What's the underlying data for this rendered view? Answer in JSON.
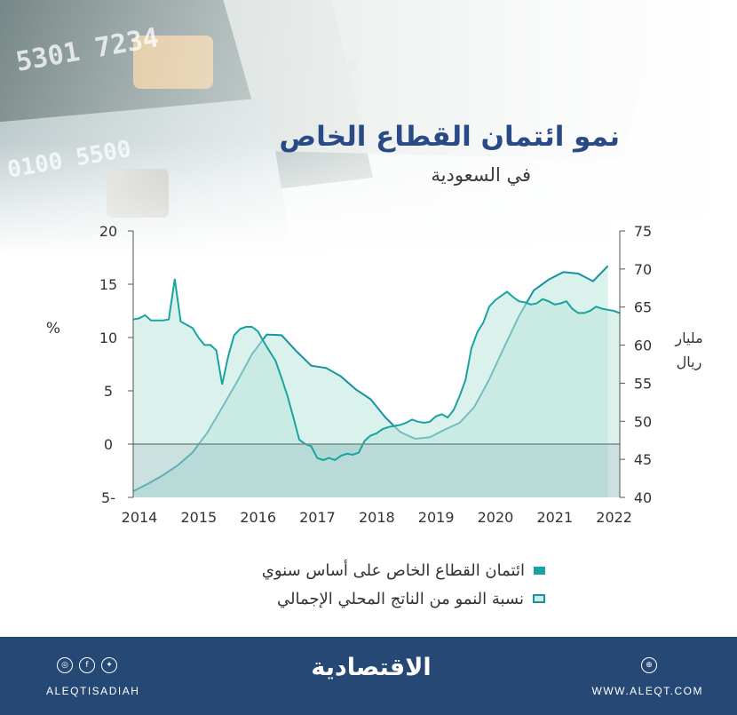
{
  "title": "نمو ائتمان القطاع الخاص",
  "subtitle": "في السعودية",
  "footer": {
    "brand": "الاقتصادية",
    "handle": "ALEQTISADIAH",
    "website": "WWW.ALEQT.COM",
    "social_icons": [
      "instagram-icon",
      "facebook-icon",
      "twitter-icon"
    ],
    "web_icon": "globe-icon"
  },
  "chart_data": {
    "type": "area",
    "left_axis": {
      "label": "%",
      "ticks": [
        "20",
        "15",
        "10",
        "5",
        "0",
        "5-"
      ],
      "ylim": [
        -5,
        20
      ]
    },
    "right_axis": {
      "label_line1": "مليار",
      "label_line2": "ريال",
      "ticks": [
        "75",
        "70",
        "65",
        "60",
        "55",
        "50",
        "45",
        "40"
      ],
      "ylim": [
        40,
        75
      ]
    },
    "x_ticks": [
      "2014",
      "2015",
      "2016",
      "2017",
      "2018",
      "2019",
      "2020",
      "2021",
      "2022"
    ],
    "grid": false,
    "legend_position": "bottom",
    "series": [
      {
        "name": "ائتمان القطاع الخاص على أساس سنوي",
        "axis": "left",
        "color": "#1aa3a0",
        "style": "filled-line",
        "x": [
          2014.0,
          2014.1,
          2014.2,
          2014.3,
          2014.4,
          2014.5,
          2014.6,
          2014.7,
          2014.8,
          2014.9,
          2015.0,
          2015.1,
          2015.2,
          2015.3,
          2015.4,
          2015.5,
          2015.6,
          2015.7,
          2015.8,
          2015.9,
          2016.0,
          2016.1,
          2016.2,
          2016.3,
          2016.4,
          2016.5,
          2016.6,
          2016.7,
          2016.8,
          2016.9,
          2017.0,
          2017.1,
          2017.2,
          2017.3,
          2017.4,
          2017.5,
          2017.6,
          2017.7,
          2017.8,
          2017.9,
          2018.0,
          2018.1,
          2018.2,
          2018.3,
          2018.4,
          2018.5,
          2018.6,
          2018.7,
          2018.8,
          2018.9,
          2019.0,
          2019.1,
          2019.2,
          2019.3,
          2019.4,
          2019.5,
          2019.6,
          2019.7,
          2019.8,
          2019.9,
          2020.0,
          2020.1,
          2020.2,
          2020.3,
          2020.4,
          2020.5,
          2020.6,
          2020.7,
          2020.8,
          2020.9,
          2021.0,
          2021.1,
          2021.2,
          2021.3,
          2021.4,
          2021.5,
          2021.6,
          2021.7,
          2021.8,
          2021.9,
          2022.0,
          2022.1,
          2022.2
        ],
        "values": [
          11.7,
          11.8,
          12.1,
          11.6,
          11.6,
          11.6,
          11.7,
          15.5,
          11.5,
          11.2,
          10.9,
          10.0,
          9.3,
          9.3,
          8.8,
          5.6,
          8.2,
          10.2,
          10.8,
          11.0,
          11.0,
          10.6,
          9.6,
          8.7,
          7.8,
          6.2,
          4.5,
          2.5,
          0.4,
          0.0,
          -0.2,
          -1.3,
          -1.5,
          -1.3,
          -1.5,
          -1.1,
          -0.9,
          -1.0,
          -0.8,
          0.3,
          0.8,
          1.0,
          1.4,
          1.6,
          1.7,
          1.8,
          2.0,
          2.3,
          2.1,
          2.0,
          2.1,
          2.6,
          2.8,
          2.5,
          3.2,
          4.5,
          6.0,
          9.0,
          10.5,
          11.4,
          12.9,
          13.5,
          13.9,
          14.3,
          13.8,
          13.4,
          13.3,
          13.1,
          13.2,
          13.6,
          13.4,
          13.1,
          13.2,
          13.4,
          12.7,
          12.3,
          12.3,
          12.5,
          12.9,
          12.7,
          12.6,
          12.5,
          12.3
        ]
      },
      {
        "name": "نسبة النمو من الناتج المحلي الإجمالي",
        "axis": "right",
        "color": "#1b8fa3",
        "style": "outlined-area",
        "x": [
          2014.0,
          2014.25,
          2014.5,
          2014.75,
          2015.0,
          2015.25,
          2015.5,
          2015.75,
          2016.0,
          2016.25,
          2016.5,
          2016.75,
          2017.0,
          2017.25,
          2017.5,
          2017.75,
          2018.0,
          2018.25,
          2018.5,
          2018.75,
          2019.0,
          2019.25,
          2019.5,
          2019.75,
          2020.0,
          2020.25,
          2020.5,
          2020.75,
          2021.0,
          2021.25,
          2021.5,
          2021.75,
          2022.0
        ],
        "values": [
          40.8,
          41.8,
          42.9,
          44.2,
          45.9,
          48.5,
          51.8,
          55.2,
          58.8,
          61.4,
          61.3,
          59.2,
          57.3,
          57.0,
          55.9,
          54.2,
          52.9,
          50.5,
          48.6,
          47.7,
          47.9,
          48.9,
          49.8,
          51.9,
          55.5,
          59.7,
          63.8,
          67.2,
          68.6,
          69.6,
          69.4,
          68.4,
          70.4
        ]
      }
    ]
  }
}
